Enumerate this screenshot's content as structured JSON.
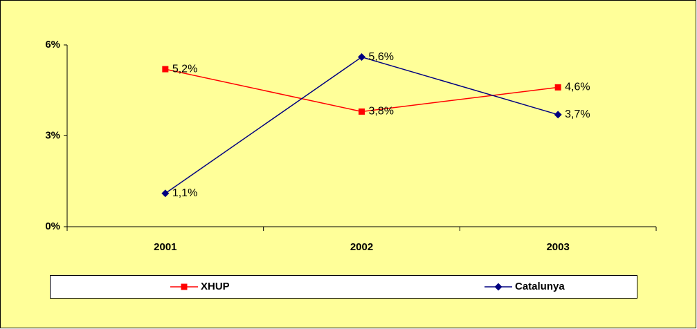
{
  "chart_data": {
    "type": "line",
    "categories": [
      "2001",
      "2002",
      "2003"
    ],
    "series": [
      {
        "name": "XHUP",
        "color": "#ff0000",
        "values": [
          5.2,
          3.8,
          4.6
        ],
        "value_labels": [
          "5,2%",
          "3,8%",
          "4,6%"
        ]
      },
      {
        "name": "Catalunya",
        "color": "#000080",
        "values": [
          1.1,
          5.6,
          3.7
        ],
        "value_labels": [
          "1,1%",
          "5,6%",
          "3,7%"
        ]
      }
    ],
    "ylim": [
      0,
      6
    ],
    "yticks": [
      {
        "value": 0,
        "label": "0%"
      },
      {
        "value": 3,
        "label": "3%"
      },
      {
        "value": 6,
        "label": "6%"
      }
    ],
    "legend": "bottom"
  }
}
